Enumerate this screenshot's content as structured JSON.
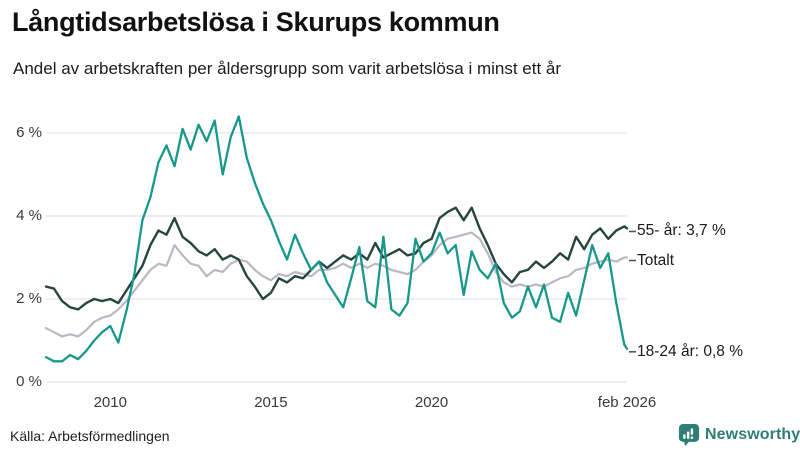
{
  "header": {
    "title": "Långtidsarbetslösa i Skurups kommun",
    "subtitle": "Andel av arbetskraften per åldersgrupp som varit arbetslösa i minst ett år"
  },
  "footer": {
    "source": "Källa: Arbetsförmedlingen",
    "brand": "Newsworthy"
  },
  "colors": {
    "grid": "#e3e3e3",
    "axis_text": "#3a3a3a",
    "label_text": "#1a1a1a",
    "dash": "#555555",
    "brand_teal": "#2e7d77",
    "background": "#ffffff"
  },
  "chart_data": {
    "type": "line",
    "title": "Långtidsarbetslösa i Skurups kommun",
    "subtitle": "Andel av arbetskraften per åldersgrupp som varit arbetslösa i minst ett år",
    "xlabel": "",
    "ylabel": "",
    "xlim": [
      2008,
      2026.083
    ],
    "ylim": [
      0,
      6
    ],
    "grid": "horizontal",
    "legend_position": "right-of-line-ends",
    "y_ticks": [
      {
        "value": 0,
        "label": "0 %"
      },
      {
        "value": 2,
        "label": "2 %"
      },
      {
        "value": 4,
        "label": "4 %"
      },
      {
        "value": 6,
        "label": "6 %"
      }
    ],
    "x_ticks": [
      {
        "value": 2010,
        "label": "2010"
      },
      {
        "value": 2015,
        "label": "2015"
      },
      {
        "value": 2020,
        "label": "2020"
      },
      {
        "value": 2026.083,
        "label": "feb 2026"
      }
    ],
    "x": [
      2008,
      2008.25,
      2008.5,
      2008.75,
      2009,
      2009.25,
      2009.5,
      2009.75,
      2010,
      2010.25,
      2010.5,
      2010.75,
      2011,
      2011.25,
      2011.5,
      2011.75,
      2012,
      2012.25,
      2012.5,
      2012.75,
      2013,
      2013.25,
      2013.5,
      2013.75,
      2014,
      2014.25,
      2014.5,
      2014.75,
      2015,
      2015.25,
      2015.5,
      2015.75,
      2016,
      2016.25,
      2016.5,
      2016.75,
      2017,
      2017.25,
      2017.5,
      2017.75,
      2018,
      2018.25,
      2018.5,
      2018.75,
      2019,
      2019.25,
      2019.5,
      2019.75,
      2020,
      2020.25,
      2020.5,
      2020.75,
      2021,
      2021.25,
      2021.5,
      2021.75,
      2022,
      2022.25,
      2022.5,
      2022.75,
      2023,
      2023.25,
      2023.5,
      2023.75,
      2024,
      2024.25,
      2024.5,
      2024.75,
      2025,
      2025.25,
      2025.5,
      2025.75,
      2026,
      2026.083
    ],
    "series": [
      {
        "name": "55- år",
        "label": "55- år: 3,7 %",
        "end_value_label": "3,7 %",
        "color": "#26463f",
        "values": [
          2.3,
          2.25,
          1.95,
          1.8,
          1.75,
          1.9,
          2.0,
          1.95,
          2.0,
          1.9,
          2.2,
          2.5,
          2.8,
          3.3,
          3.65,
          3.55,
          3.95,
          3.5,
          3.35,
          3.15,
          3.05,
          3.2,
          2.95,
          3.05,
          2.95,
          2.55,
          2.3,
          2.0,
          2.15,
          2.5,
          2.4,
          2.55,
          2.5,
          2.7,
          2.9,
          2.75,
          2.9,
          3.05,
          2.95,
          3.1,
          2.95,
          3.35,
          3.0,
          3.1,
          3.2,
          3.05,
          3.1,
          3.35,
          3.45,
          3.95,
          4.1,
          4.2,
          3.9,
          4.2,
          3.7,
          3.3,
          2.85,
          2.6,
          2.4,
          2.65,
          2.7,
          2.9,
          2.75,
          2.9,
          3.1,
          2.95,
          3.5,
          3.2,
          3.55,
          3.7,
          3.45,
          3.65,
          3.75,
          3.7
        ]
      },
      {
        "name": "Totalt",
        "label": "Totalt",
        "end_value_label": "",
        "color": "#bab8c6",
        "values": [
          1.3,
          1.2,
          1.1,
          1.15,
          1.1,
          1.25,
          1.45,
          1.55,
          1.6,
          1.75,
          1.95,
          2.2,
          2.45,
          2.7,
          2.85,
          2.8,
          3.3,
          3.05,
          2.85,
          2.8,
          2.55,
          2.7,
          2.65,
          2.85,
          2.95,
          2.9,
          2.7,
          2.55,
          2.45,
          2.6,
          2.55,
          2.65,
          2.6,
          2.55,
          2.7,
          2.7,
          2.75,
          2.85,
          2.75,
          2.85,
          2.75,
          2.85,
          2.8,
          2.7,
          2.65,
          2.6,
          2.7,
          2.9,
          3.05,
          3.3,
          3.45,
          3.5,
          3.55,
          3.6,
          3.45,
          3.1,
          2.65,
          2.4,
          2.3,
          2.35,
          2.3,
          2.35,
          2.3,
          2.4,
          2.5,
          2.55,
          2.7,
          2.75,
          2.85,
          2.9,
          2.95,
          2.9,
          3.0,
          3.0
        ]
      },
      {
        "name": "18-24 år",
        "label": "18-24 år: 0,8 %",
        "end_value_label": "0,8 %",
        "color": "#17988a",
        "values": [
          0.6,
          0.5,
          0.5,
          0.65,
          0.55,
          0.75,
          1.0,
          1.2,
          1.35,
          0.95,
          1.7,
          2.6,
          3.9,
          4.45,
          5.3,
          5.7,
          5.2,
          6.1,
          5.6,
          6.2,
          5.8,
          6.3,
          5.0,
          5.9,
          6.4,
          5.4,
          4.8,
          4.3,
          3.9,
          3.4,
          2.95,
          3.55,
          3.1,
          2.7,
          2.9,
          2.4,
          2.1,
          1.8,
          2.5,
          3.25,
          1.95,
          1.8,
          3.5,
          1.75,
          1.6,
          1.9,
          3.45,
          2.9,
          3.1,
          3.6,
          3.1,
          3.3,
          2.1,
          3.15,
          2.7,
          2.5,
          2.85,
          1.9,
          1.55,
          1.7,
          2.3,
          1.8,
          2.35,
          1.55,
          1.45,
          2.15,
          1.6,
          2.45,
          3.3,
          2.75,
          3.1,
          1.9,
          0.9,
          0.8
        ]
      }
    ]
  }
}
